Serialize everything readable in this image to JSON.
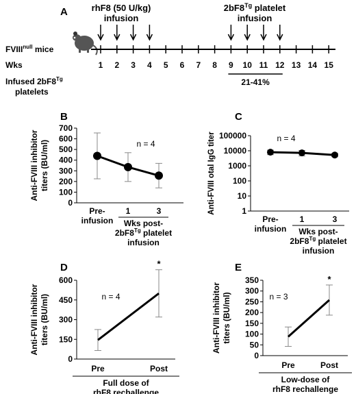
{
  "panel_letters": {
    "a": "A",
    "b": "B",
    "c": "C",
    "d": "D",
    "e": "E"
  },
  "timeline": {
    "rhf8_label": "rhF8 (50 U/kg)",
    "rhf8_label2": "infusion",
    "platelet_label_pre": "2bF8",
    "platelet_label_sup": "Tg",
    "platelet_label_post": " platelet",
    "platelet_label2": "infusion",
    "mouse_label_pre": "FVIII",
    "mouse_label_sup": "null",
    "mouse_label_post": " mice",
    "wks_label": "Wks",
    "infused_pre": "Infused 2bF8",
    "infused_sup": "Tg",
    "infused_line2": "platelets",
    "weeks": [
      "1",
      "2",
      "3",
      "4",
      "5",
      "6",
      "7",
      "8",
      "9",
      "10",
      "11",
      "12",
      "13",
      "14",
      "15"
    ],
    "rhf8_weeks": [
      1,
      2,
      3,
      4
    ],
    "platelet_weeks": [
      9,
      10,
      11,
      12
    ],
    "bracket_range": [
      9,
      12
    ],
    "range_text": "21-41%",
    "mouse_icon": "mouse-icon"
  },
  "chart_data": [
    {
      "panel": "B",
      "type": "line",
      "ylabel_line1": "Anti-FVIII inhibitor",
      "ylabel_line2": "titers (BU/ml)",
      "ylim": [
        0,
        700
      ],
      "yticks": [
        "0",
        "50",
        "100",
        "150",
        "200",
        "250",
        "300",
        "350",
        "400",
        "450",
        "500",
        "550",
        "600",
        "650",
        "700"
      ],
      "yticks_shown": [
        "0",
        "100",
        "200",
        "300",
        "400",
        "500",
        "600",
        "700"
      ],
      "categories": [
        "Pre-infusion",
        "1",
        "3"
      ],
      "values": [
        440,
        335,
        255
      ],
      "err": [
        215,
        135,
        115
      ],
      "n_label": "n = 4",
      "x_pre_line1": "Pre-",
      "x_pre_line2": "infusion",
      "group_line1": "Wks post-",
      "group_line2_pre": "2bF8",
      "group_line2_sup": "Tg",
      "group_line2_post": " platelet",
      "group_line3": "infusion"
    },
    {
      "panel": "C",
      "type": "line",
      "yscale": "log",
      "ylabel": "Anti-FVIII otal IgG titer",
      "ylim": [
        1,
        100000
      ],
      "yticks": [
        "1",
        "10",
        "100",
        "1000",
        "10000",
        "100000"
      ],
      "categories": [
        "Pre-infusion",
        "1",
        "3"
      ],
      "values": [
        8000,
        7200,
        5200
      ],
      "err_low": [
        5500,
        4500,
        4000
      ],
      "err_high": [
        11000,
        10500,
        6800
      ],
      "n_label": "n = 4",
      "x_pre_line1": "Pre-",
      "x_pre_line2": "infusion",
      "group_line1": "Wks post-",
      "group_line2_pre": "2bF8",
      "group_line2_sup": "Tg",
      "group_line2_post": " platelet",
      "group_line3": "infusion"
    },
    {
      "panel": "D",
      "type": "line",
      "ylabel_line1": "Anti-FVIII inhibitor",
      "ylabel_line2": "titers (BU/ml)",
      "ylim": [
        0,
        600
      ],
      "yticks": [
        "0",
        "150",
        "300",
        "450",
        "600"
      ],
      "categories": [
        "Pre",
        "Post"
      ],
      "values": [
        145,
        500
      ],
      "err": [
        80,
        180
      ],
      "n_label": "n = 4",
      "sig": "*",
      "group_line1": "Full dose of",
      "group_line2": "rhF8 rechallenge"
    },
    {
      "panel": "E",
      "type": "line",
      "ylabel_line1": "Anti-FVIII inhibitor",
      "ylabel_line2": "titers (BU/ml)",
      "ylim": [
        0,
        350
      ],
      "yticks": [
        "0",
        "50",
        "100",
        "150",
        "200",
        "250",
        "300",
        "350"
      ],
      "categories": [
        "Pre",
        "Post"
      ],
      "values": [
        88,
        258
      ],
      "err": [
        45,
        70
      ],
      "n_label": "n = 3",
      "sig": "*",
      "group_line1": "Low-dose of",
      "group_line2": "rhF8 rechallenge"
    }
  ]
}
